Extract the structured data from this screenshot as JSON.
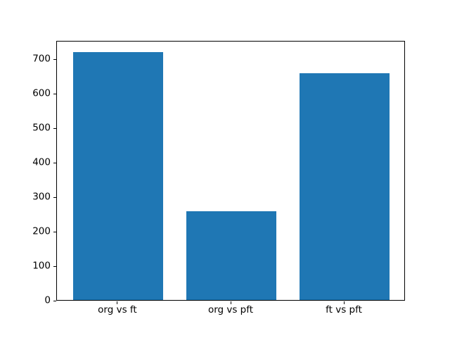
{
  "chart_data": {
    "type": "bar",
    "title": "",
    "xlabel": "",
    "ylabel": "",
    "categories": [
      "org vs ft",
      "org vs pft",
      "ft vs pft"
    ],
    "values": [
      718,
      258,
      657
    ],
    "yticks": [
      0,
      100,
      200,
      300,
      400,
      500,
      600,
      700
    ],
    "ylim": [
      0,
      754
    ],
    "bar_color": "#1f77b4",
    "bar_width_fraction": 0.8,
    "grid": false,
    "legend": "none",
    "background_color": "#ffffff",
    "spine_color": "#000000",
    "tick_label_color": "#000000"
  }
}
